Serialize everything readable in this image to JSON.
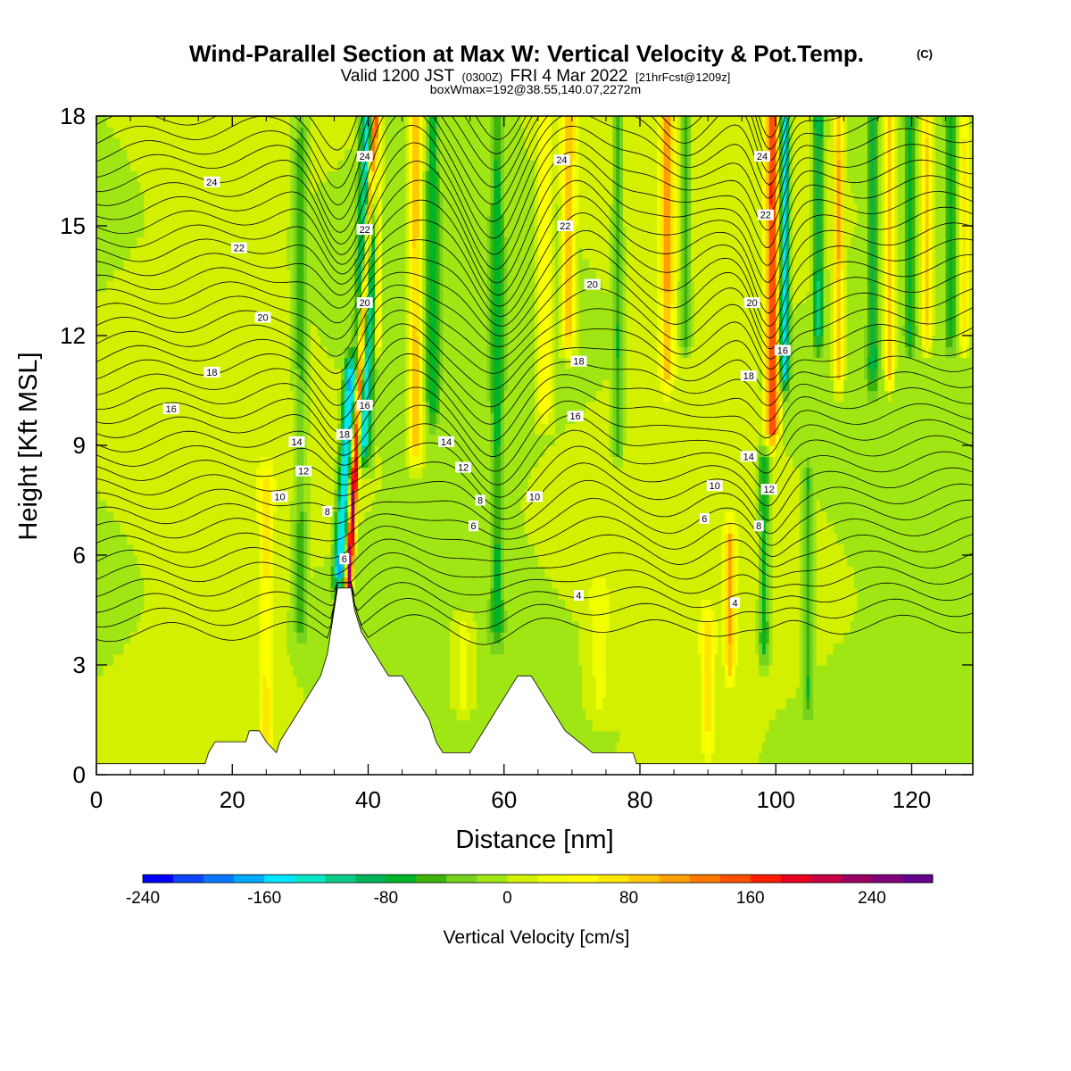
{
  "header": {
    "title": "Wind-Parallel Section at Max W: Vertical Velocity & Pot.Temp.",
    "copyright": "(C)",
    "valid_main": "Valid 1200 JST",
    "valid_z": "(0300Z)",
    "valid_date": "FRI 4 Mar 2022",
    "forecast": "[21hrFcst@1209z]",
    "box_info": "boxWmax=192@38.55,140.07,2272m"
  },
  "chart_data": {
    "type": "heatmap",
    "xlabel": "Distance [nm]",
    "ylabel": "Height [Kft MSL]",
    "xlim": [
      0,
      129
    ],
    "ylim": [
      0,
      18
    ],
    "x_ticks": [
      0,
      20,
      40,
      60,
      80,
      100,
      120
    ],
    "y_ticks": [
      0,
      3,
      6,
      9,
      12,
      15,
      18
    ],
    "x_tick_labels": [
      "0",
      "20",
      "40",
      "60",
      "80",
      "100",
      "120"
    ],
    "y_tick_labels": [
      "0",
      "3",
      "6",
      "9",
      "12",
      "15",
      "18"
    ],
    "colorbar": {
      "label": "Vertical Velocity [cm/s]",
      "range": [
        -240,
        280
      ],
      "tick_values": [
        -240,
        -160,
        -80,
        0,
        80,
        160,
        240
      ],
      "tick_labels": [
        "-240",
        "-160",
        "-80",
        "0",
        "80",
        "160",
        "240"
      ],
      "colors": [
        "#0000ff",
        "#0a46ff",
        "#0a78ff",
        "#00aaff",
        "#00e6ff",
        "#0ae6c8",
        "#0acd8c",
        "#00b45a",
        "#00b428",
        "#3cb40a",
        "#78d21e",
        "#a0e614",
        "#d2f000",
        "#f0ff00",
        "#ffff00",
        "#ffe600",
        "#ffc800",
        "#ffa000",
        "#ff7800",
        "#ff5000",
        "#ff1e00",
        "#e6001e",
        "#c80046",
        "#9b0064",
        "#820078",
        "#64008c"
      ]
    },
    "terrain": [
      [
        0,
        0.3
      ],
      [
        16,
        0.3
      ],
      [
        16.5,
        0.6
      ],
      [
        17.5,
        0.9
      ],
      [
        22,
        0.9
      ],
      [
        22.5,
        1.2
      ],
      [
        24,
        1.2
      ],
      [
        25,
        0.9
      ],
      [
        26.5,
        0.6
      ],
      [
        27,
        0.9
      ],
      [
        28,
        1.2
      ],
      [
        29,
        1.5
      ],
      [
        30,
        1.8
      ],
      [
        31,
        2.1
      ],
      [
        32,
        2.4
      ],
      [
        33,
        2.7
      ],
      [
        34,
        3.3
      ],
      [
        34.5,
        3.9
      ],
      [
        35,
        4.5
      ],
      [
        35.5,
        5.1
      ],
      [
        37.5,
        5.1
      ],
      [
        38,
        4.5
      ],
      [
        38.5,
        4.2
      ],
      [
        39,
        3.9
      ],
      [
        40,
        3.6
      ],
      [
        41,
        3.3
      ],
      [
        42,
        3.0
      ],
      [
        43,
        2.7
      ],
      [
        45,
        2.7
      ],
      [
        46,
        2.4
      ],
      [
        47,
        2.1
      ],
      [
        48,
        1.8
      ],
      [
        49,
        1.5
      ],
      [
        50,
        0.9
      ],
      [
        51,
        0.6
      ],
      [
        55,
        0.6
      ],
      [
        56,
        0.9
      ],
      [
        57,
        1.2
      ],
      [
        58,
        1.5
      ],
      [
        59,
        1.8
      ],
      [
        60,
        2.1
      ],
      [
        61,
        2.4
      ],
      [
        62,
        2.7
      ],
      [
        64,
        2.7
      ],
      [
        65,
        2.4
      ],
      [
        66,
        2.1
      ],
      [
        67,
        1.8
      ],
      [
        68,
        1.5
      ],
      [
        69,
        1.2
      ],
      [
        71,
        0.9
      ],
      [
        73,
        0.6
      ],
      [
        79,
        0.6
      ],
      [
        79.5,
        0.3
      ],
      [
        129,
        0.3
      ]
    ],
    "w_features": [
      {
        "type": "slab",
        "x": [
          36.5,
          37.6
        ],
        "z": [
          5.0,
          18
        ],
        "lean": 0.3,
        "w": 240
      },
      {
        "type": "slab",
        "x": [
          34.8,
          36.6
        ],
        "z": [
          5.5,
          11.0
        ],
        "lean": 0.3,
        "w": -160
      },
      {
        "type": "slab",
        "x": [
          38.0,
          40.5
        ],
        "z": [
          9.0,
          18
        ],
        "lean": 0.1,
        "w": -150
      },
      {
        "type": "slab",
        "x": [
          41.0,
          42.0
        ],
        "z": [
          12,
          18
        ],
        "lean": 0,
        "w": 80
      },
      {
        "type": "slab",
        "x": [
          24.0,
          26.0
        ],
        "z": [
          1.0,
          8.0
        ],
        "lean": 0,
        "w": 60
      },
      {
        "type": "slab",
        "x": [
          29.0,
          31.0
        ],
        "z": [
          4.0,
          18
        ],
        "lean": 0,
        "w": -50
      },
      {
        "type": "slab",
        "x": [
          46.0,
          48.0
        ],
        "z": [
          9.0,
          18
        ],
        "lean": 0,
        "w": 100
      },
      {
        "type": "slab",
        "x": [
          48.5,
          50.5
        ],
        "z": [
          10,
          18
        ],
        "lean": 0,
        "w": -60
      },
      {
        "type": "slab",
        "x": [
          58.0,
          60.0
        ],
        "z": [
          4.0,
          18
        ],
        "lean": 0,
        "w": -60
      },
      {
        "type": "slab",
        "x": [
          65.0,
          67.0
        ],
        "z": [
          10,
          18
        ],
        "lean": 0,
        "w": 60
      },
      {
        "type": "slab",
        "x": [
          68.5,
          70.5
        ],
        "z": [
          12,
          18
        ],
        "lean": 0,
        "w": 100
      },
      {
        "type": "slab",
        "x": [
          76.0,
          77.5
        ],
        "z": [
          9.0,
          18
        ],
        "lean": 0,
        "w": -60
      },
      {
        "type": "slab",
        "x": [
          83.0,
          85.0
        ],
        "z": [
          11,
          18
        ],
        "lean": 0,
        "w": 100
      },
      {
        "type": "slab",
        "x": [
          86.0,
          87.5
        ],
        "z": [
          12,
          18
        ],
        "lean": 0,
        "w": -60
      },
      {
        "type": "slab",
        "x": [
          89.0,
          91.0
        ],
        "z": [
          1.0,
          4.0
        ],
        "lean": 0,
        "w": 60
      },
      {
        "type": "slab",
        "x": [
          92.5,
          94.0
        ],
        "z": [
          3.0,
          6.5
        ],
        "lean": 0,
        "w": 90
      },
      {
        "type": "slab",
        "x": [
          97.5,
          99.0
        ],
        "z": [
          3.5,
          8.5
        ],
        "lean": 0,
        "w": -80
      },
      {
        "type": "slab",
        "x": [
          98.5,
          100.5
        ],
        "z": [
          9.5,
          18
        ],
        "lean": 0,
        "w": 160
      },
      {
        "type": "slab",
        "x": [
          100.5,
          102.0
        ],
        "z": [
          11,
          18
        ],
        "lean": 0,
        "w": -150
      },
      {
        "type": "slab",
        "x": [
          104.0,
          105.5
        ],
        "z": [
          2.0,
          8.0
        ],
        "lean": 0,
        "w": -60
      },
      {
        "type": "slab",
        "x": [
          105.5,
          107.0
        ],
        "z": [
          12,
          18
        ],
        "lean": 0,
        "w": -100
      },
      {
        "type": "slab",
        "x": [
          108.5,
          110.0
        ],
        "z": [
          11,
          18
        ],
        "lean": 0,
        "w": 100
      },
      {
        "type": "slab",
        "x": [
          113.5,
          115.0
        ],
        "z": [
          11,
          18
        ],
        "lean": 0,
        "w": -80
      },
      {
        "type": "slab",
        "x": [
          116.0,
          117.5
        ],
        "z": [
          11,
          18
        ],
        "lean": 0,
        "w": 100
      },
      {
        "type": "slab",
        "x": [
          119.0,
          120.5
        ],
        "z": [
          12,
          18
        ],
        "lean": 0,
        "w": -70
      },
      {
        "type": "slab",
        "x": [
          121.5,
          123.0
        ],
        "z": [
          12,
          18
        ],
        "lean": 0,
        "w": 90
      },
      {
        "type": "slab",
        "x": [
          125.0,
          126.5
        ],
        "z": [
          12,
          18
        ],
        "lean": 0,
        "w": -60
      },
      {
        "type": "slab",
        "x": [
          127.0,
          128.5
        ],
        "z": [
          12,
          18
        ],
        "lean": 0,
        "w": 70
      },
      {
        "type": "slab",
        "x": [
          52.0,
          56.0
        ],
        "z": [
          2.0,
          4.0
        ],
        "lean": 0,
        "w": 40
      },
      {
        "type": "slab",
        "x": [
          72.0,
          76.0
        ],
        "z": [
          2.0,
          5.0
        ],
        "lean": 0,
        "w": 25
      }
    ],
    "theta_contour_labels": [
      {
        "x": 17,
        "z": 16.2,
        "text": "24"
      },
      {
        "x": 21,
        "z": 14.4,
        "text": "22"
      },
      {
        "x": 24.5,
        "z": 12.5,
        "text": "20"
      },
      {
        "x": 17,
        "z": 11.0,
        "text": "18"
      },
      {
        "x": 11,
        "z": 10.0,
        "text": "16"
      },
      {
        "x": 29.5,
        "z": 9.1,
        "text": "14"
      },
      {
        "x": 30.5,
        "z": 8.3,
        "text": "12"
      },
      {
        "x": 27,
        "z": 7.6,
        "text": "10"
      },
      {
        "x": 34,
        "z": 7.2,
        "text": "8"
      },
      {
        "x": 36.5,
        "z": 5.9,
        "text": "6"
      },
      {
        "x": 36.5,
        "z": 9.3,
        "text": "18"
      },
      {
        "x": 39.5,
        "z": 10.1,
        "text": "16"
      },
      {
        "x": 39.5,
        "z": 12.9,
        "text": "20"
      },
      {
        "x": 39.5,
        "z": 14.9,
        "text": "22"
      },
      {
        "x": 39.5,
        "z": 16.9,
        "text": "24"
      },
      {
        "x": 51.5,
        "z": 9.1,
        "text": "14"
      },
      {
        "x": 54,
        "z": 8.4,
        "text": "12"
      },
      {
        "x": 56.5,
        "z": 7.5,
        "text": "8"
      },
      {
        "x": 55.5,
        "z": 6.8,
        "text": "6"
      },
      {
        "x": 64.5,
        "z": 7.6,
        "text": "10"
      },
      {
        "x": 71,
        "z": 4.9,
        "text": "4"
      },
      {
        "x": 70.5,
        "z": 9.8,
        "text": "16"
      },
      {
        "x": 71,
        "z": 11.3,
        "text": "18"
      },
      {
        "x": 73,
        "z": 13.4,
        "text": "20"
      },
      {
        "x": 69,
        "z": 15.0,
        "text": "22"
      },
      {
        "x": 68.5,
        "z": 16.8,
        "text": "24"
      },
      {
        "x": 91,
        "z": 7.9,
        "text": "10"
      },
      {
        "x": 89.5,
        "z": 7.0,
        "text": "6"
      },
      {
        "x": 96,
        "z": 8.7,
        "text": "14"
      },
      {
        "x": 99,
        "z": 7.8,
        "text": "12"
      },
      {
        "x": 97.5,
        "z": 6.8,
        "text": "8"
      },
      {
        "x": 94,
        "z": 4.7,
        "text": "4"
      },
      {
        "x": 96,
        "z": 10.9,
        "text": "18"
      },
      {
        "x": 101,
        "z": 11.6,
        "text": "16"
      },
      {
        "x": 96.5,
        "z": 12.9,
        "text": "20"
      },
      {
        "x": 98.5,
        "z": 15.3,
        "text": "22"
      },
      {
        "x": 98,
        "z": 16.9,
        "text": "24"
      }
    ]
  }
}
